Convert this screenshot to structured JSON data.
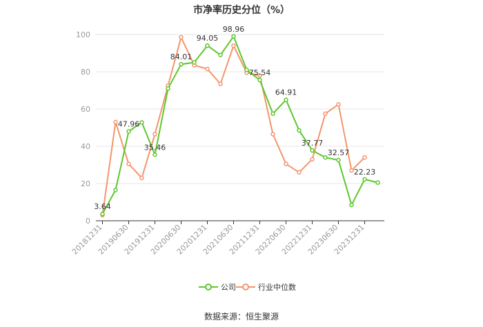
{
  "chart_data": {
    "type": "line",
    "title": "市净率历史分位（%）",
    "x": [
      "20181231",
      "20190331",
      "20190630",
      "20190930",
      "20191231",
      "20200331",
      "20200630",
      "20200930",
      "20201231",
      "20210331",
      "20210630",
      "20210930",
      "20211231",
      "20220331",
      "20220630",
      "20220930",
      "20221231",
      "20230331",
      "20230630",
      "20230930",
      "20231231",
      "20240331"
    ],
    "x_tick_labels": [
      "20181231",
      "20190630",
      "20191231",
      "20200630",
      "20201231",
      "20210630",
      "20211231",
      "20220630",
      "20221231",
      "20230630",
      "20231231"
    ],
    "ylim": [
      0,
      100
    ],
    "yticks": [
      0,
      20,
      40,
      60,
      80,
      100
    ],
    "grid": true,
    "legend_position": "bottom",
    "series": [
      {
        "name": "公司",
        "color": "#5cc72b",
        "values": [
          3.64,
          16.5,
          47.96,
          52.8,
          35.46,
          71.0,
          84.01,
          85.0,
          94.05,
          89.0,
          98.96,
          81.0,
          75.54,
          57.5,
          64.91,
          48.5,
          37.77,
          34.0,
          32.57,
          8.5,
          22.23,
          20.5
        ],
        "labels": [
          {
            "index": 0,
            "text": "3.64"
          },
          {
            "index": 2,
            "text": "47.96"
          },
          {
            "index": 4,
            "text": "35.46"
          },
          {
            "index": 6,
            "text": "84.01"
          },
          {
            "index": 8,
            "text": "94.05"
          },
          {
            "index": 10,
            "text": "98.96"
          },
          {
            "index": 12,
            "text": "75.54"
          },
          {
            "index": 14,
            "text": "64.91"
          },
          {
            "index": 16,
            "text": "37.77"
          },
          {
            "index": 18,
            "text": "32.57"
          },
          {
            "index": 20,
            "text": "22.23"
          }
        ]
      },
      {
        "name": "行业中位数",
        "color": "#f4946c",
        "values": [
          3.0,
          53.0,
          30.5,
          23.0,
          46.5,
          72.5,
          98.5,
          83.5,
          81.5,
          73.5,
          94.0,
          79.5,
          78.0,
          46.5,
          30.5,
          26.0,
          33.0,
          57.5,
          62.5,
          27.0,
          34.0,
          null
        ]
      }
    ]
  },
  "footer": {
    "source": "数据来源：恒生聚源"
  }
}
